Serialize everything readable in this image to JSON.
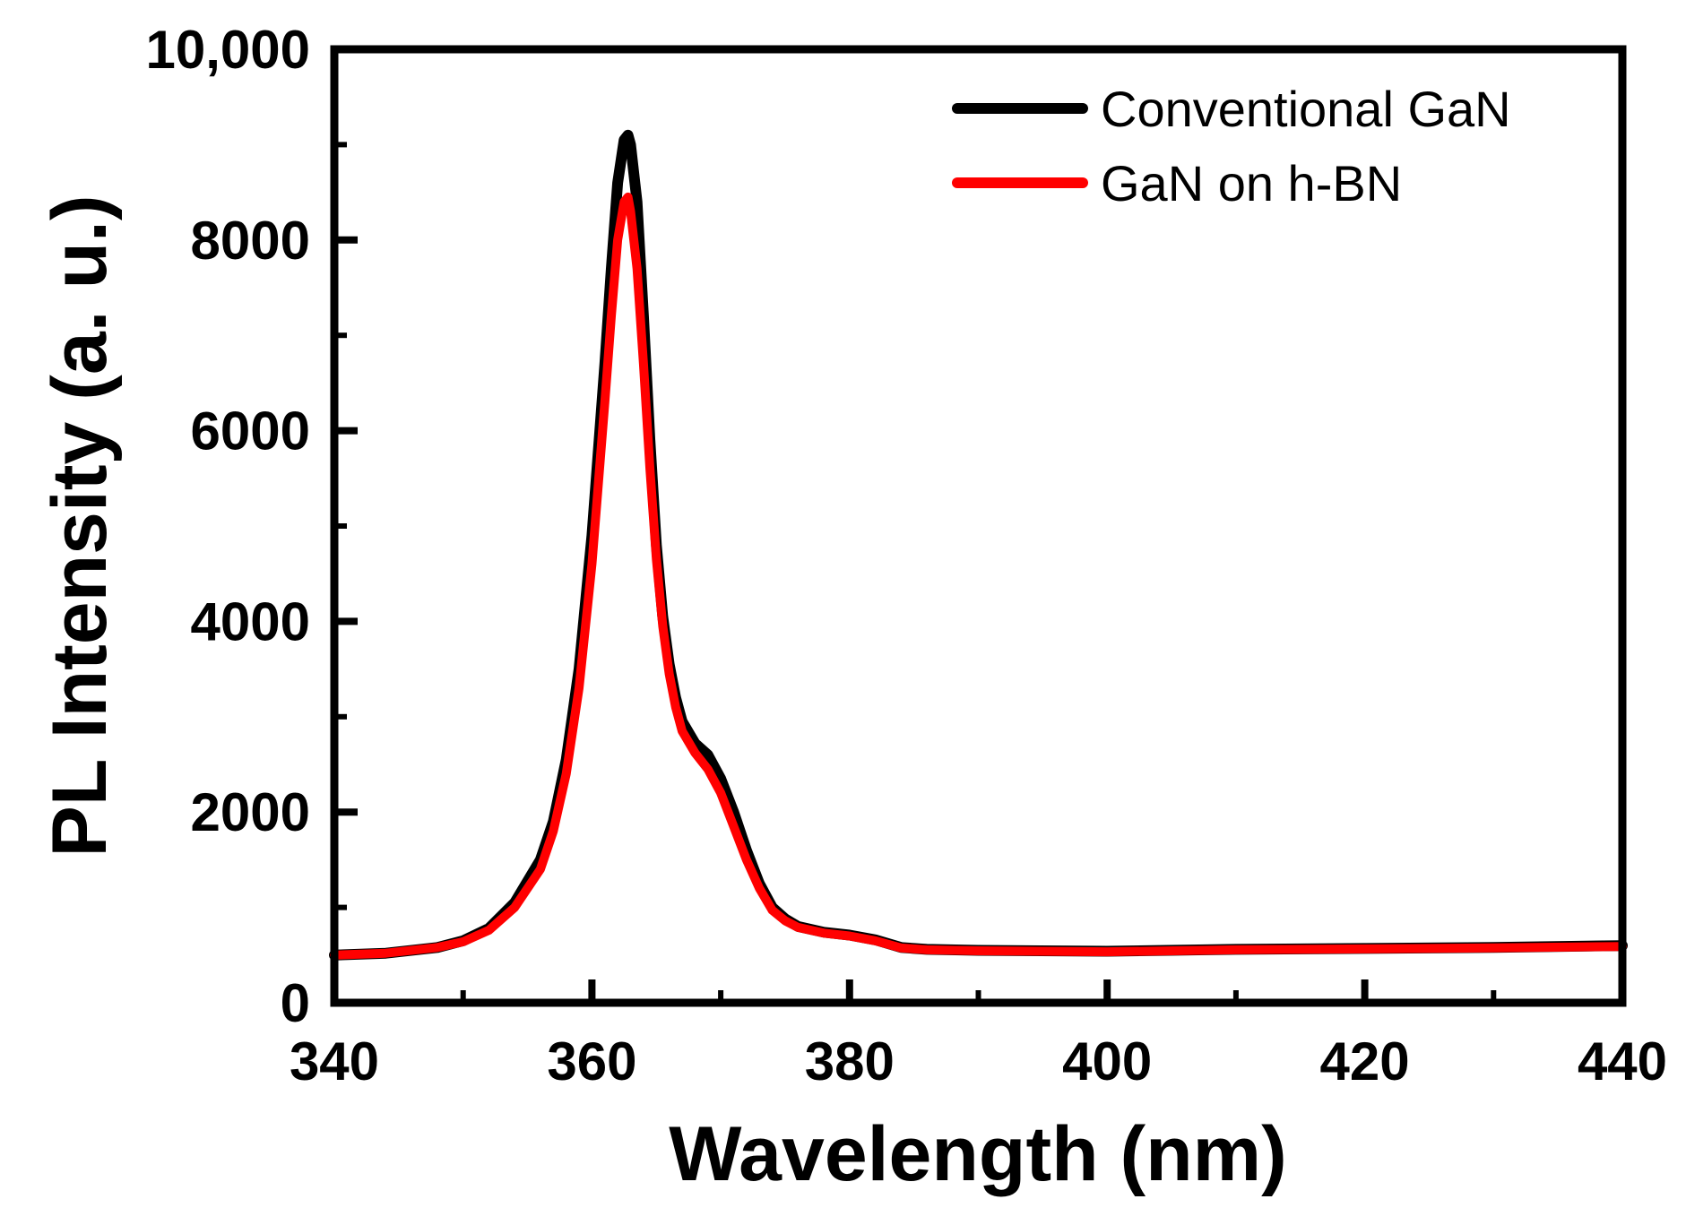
{
  "chart_data": {
    "type": "line",
    "title": "",
    "xlabel": "Wavelength (nm)",
    "ylabel": "PL Intensity (a. u.)",
    "xlim": [
      340,
      440
    ],
    "ylim": [
      0,
      10000
    ],
    "xticks": [
      340,
      360,
      380,
      400,
      420,
      440
    ],
    "xtick_labels": [
      "340",
      "360",
      "380",
      "400",
      "420",
      "440"
    ],
    "yticks": [
      0,
      2000,
      4000,
      6000,
      8000,
      10000
    ],
    "ytick_labels": [
      "0",
      "2000",
      "4000",
      "6000",
      "8000",
      "10,000"
    ],
    "legend_position": "top-right",
    "grid": false,
    "series": [
      {
        "name": "Conventional GaN",
        "color": "#000000",
        "x": [
          340,
          344,
          348,
          350,
          352,
          354,
          356,
          357,
          358,
          359,
          360,
          361,
          361.5,
          362,
          362.5,
          362.8,
          363,
          363.5,
          364,
          364.5,
          365,
          365.5,
          366,
          366.5,
          367,
          368,
          369,
          370,
          371,
          372,
          373,
          374,
          375,
          376,
          378,
          380,
          382,
          384,
          386,
          390,
          400,
          410,
          420,
          430,
          440
        ],
        "values": [
          500,
          520,
          580,
          650,
          780,
          1050,
          1500,
          1900,
          2550,
          3500,
          4900,
          6700,
          7700,
          8600,
          9050,
          9100,
          9000,
          8400,
          7200,
          5900,
          4800,
          4050,
          3550,
          3200,
          2950,
          2720,
          2600,
          2350,
          2000,
          1600,
          1250,
          1000,
          880,
          800,
          740,
          710,
          660,
          580,
          560,
          550,
          540,
          560,
          570,
          580,
          600
        ]
      },
      {
        "name": "GaN on h-BN",
        "color": "#ff0000",
        "x": [
          340,
          344,
          348,
          350,
          352,
          354,
          356,
          357,
          358,
          359,
          360,
          361,
          361.5,
          362,
          362.5,
          362.8,
          363,
          363.5,
          364,
          364.5,
          365,
          365.5,
          366,
          366.5,
          367,
          368,
          369,
          370,
          371,
          372,
          373,
          374,
          375,
          376,
          378,
          380,
          382,
          384,
          386,
          390,
          400,
          410,
          420,
          430,
          440
        ],
        "values": [
          500,
          520,
          580,
          640,
          760,
          1000,
          1400,
          1800,
          2400,
          3300,
          4600,
          6300,
          7200,
          8000,
          8400,
          8450,
          8300,
          7700,
          6700,
          5600,
          4650,
          3950,
          3450,
          3100,
          2850,
          2620,
          2450,
          2200,
          1850,
          1500,
          1200,
          970,
          860,
          790,
          730,
          700,
          650,
          575,
          555,
          545,
          535,
          555,
          565,
          575,
          590
        ]
      }
    ]
  }
}
